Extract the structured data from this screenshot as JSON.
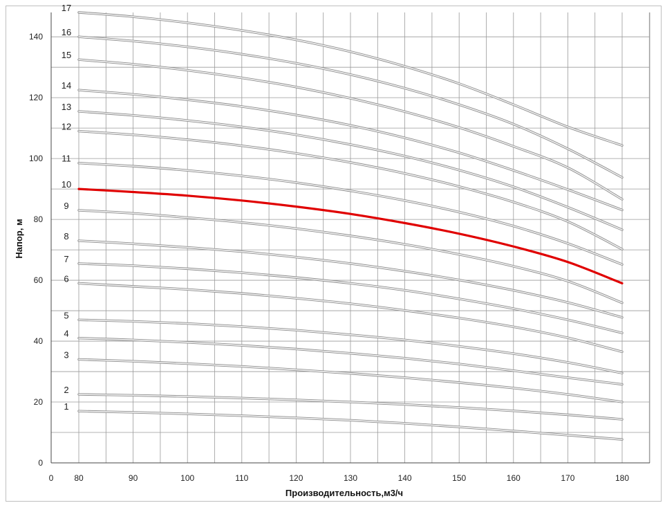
{
  "chart_data": {
    "type": "line",
    "title": "",
    "xlabel": "Производительность,м3/ч",
    "ylabel": "Напор, м",
    "xlim": [
      0,
      188
    ],
    "ylim": [
      0,
      148
    ],
    "x_ticks": [
      "0",
      "80",
      "90",
      "100",
      "110",
      "120",
      "130",
      "140",
      "150",
      "160",
      "170",
      "180"
    ],
    "y_ticks": [
      "0",
      "20",
      "40",
      "60",
      "80",
      "100",
      "120",
      "140"
    ],
    "grid": true,
    "highlight_color": "#e00000",
    "curve_color": "#b5b5b5",
    "x": [
      80,
      90,
      100,
      110,
      120,
      130,
      140,
      150,
      160,
      170,
      180
    ],
    "series": [
      {
        "name": "1",
        "values": [
          17,
          16.6,
          16.1,
          15.5,
          14.8,
          14.0,
          13.0,
          11.8,
          10.5,
          9.1,
          7.7
        ],
        "highlight": false
      },
      {
        "name": "2",
        "values": [
          22.5,
          22.2,
          21.8,
          21.3,
          20.7,
          20.0,
          19.2,
          18.2,
          17.1,
          15.8,
          14.3
        ],
        "highlight": false
      },
      {
        "name": "3",
        "values": [
          34,
          33.4,
          32.6,
          31.7,
          30.6,
          29.4,
          28.0,
          26.4,
          24.6,
          22.5,
          20.0
        ],
        "highlight": false
      },
      {
        "name": "4",
        "values": [
          41,
          40.4,
          39.6,
          38.6,
          37.4,
          36.0,
          34.4,
          32.5,
          30.3,
          28.0,
          25.8
        ],
        "highlight": false
      },
      {
        "name": "5",
        "values": [
          47,
          46.5,
          45.8,
          44.8,
          43.6,
          42.1,
          40.4,
          38.3,
          35.9,
          33.0,
          29.5
        ],
        "highlight": false
      },
      {
        "name": "6",
        "values": [
          59,
          58,
          57,
          55.7,
          54.1,
          52.3,
          50.1,
          47.6,
          44.7,
          41.1,
          36.5
        ],
        "highlight": false
      },
      {
        "name": "7",
        "values": [
          65.5,
          64.8,
          63.8,
          62.5,
          60.9,
          59.0,
          56.7,
          53.9,
          50.7,
          47.0,
          42.7
        ],
        "highlight": false
      },
      {
        "name": "8",
        "values": [
          73,
          72,
          70.8,
          69.4,
          67.6,
          65.5,
          63.0,
          60.1,
          56.7,
          52.7,
          47.8
        ],
        "highlight": false
      },
      {
        "name": "9",
        "values": [
          83,
          82,
          80.6,
          79.0,
          77.0,
          74.6,
          71.8,
          68.5,
          64.6,
          59.7,
          52.6
        ],
        "highlight": false
      },
      {
        "name": "10",
        "values": [
          90,
          89,
          87.8,
          86.2,
          84.2,
          81.8,
          78.8,
          75.3,
          71.1,
          66.0,
          59.0
        ],
        "highlight": true
      },
      {
        "name": "11",
        "values": [
          98.5,
          97.5,
          96.1,
          94.3,
          92.1,
          89.4,
          86.2,
          82.4,
          77.8,
          72.1,
          65.2
        ],
        "highlight": false
      },
      {
        "name": "12",
        "values": [
          109,
          107.8,
          106.2,
          104.2,
          101.7,
          98.7,
          95.1,
          90.8,
          85.7,
          79.3,
          70.2
        ],
        "highlight": false
      },
      {
        "name": "13",
        "values": [
          115.5,
          114.2,
          112.5,
          110.4,
          107.8,
          104.6,
          100.8,
          96.2,
          90.7,
          84.0,
          76.6
        ],
        "highlight": false
      },
      {
        "name": "14",
        "values": [
          122.5,
          121.1,
          119.3,
          117.1,
          114.3,
          110.9,
          106.8,
          101.9,
          96.1,
          89.8,
          83.1
        ],
        "highlight": false
      },
      {
        "name": "15",
        "values": [
          132.5,
          131.0,
          129.0,
          126.5,
          123.5,
          119.8,
          115.4,
          110.2,
          104.0,
          97.0,
          86.6
        ],
        "highlight": false
      },
      {
        "name": "16",
        "values": [
          140,
          138.6,
          136.7,
          134.3,
          131.3,
          127.6,
          123.1,
          117.7,
          111.3,
          103.2,
          93.8
        ],
        "highlight": false
      },
      {
        "name": "17",
        "values": [
          148,
          146.6,
          144.6,
          142.1,
          139.0,
          135.1,
          130.3,
          124.6,
          117.7,
          110.4,
          104.3
        ],
        "highlight": false
      }
    ]
  }
}
